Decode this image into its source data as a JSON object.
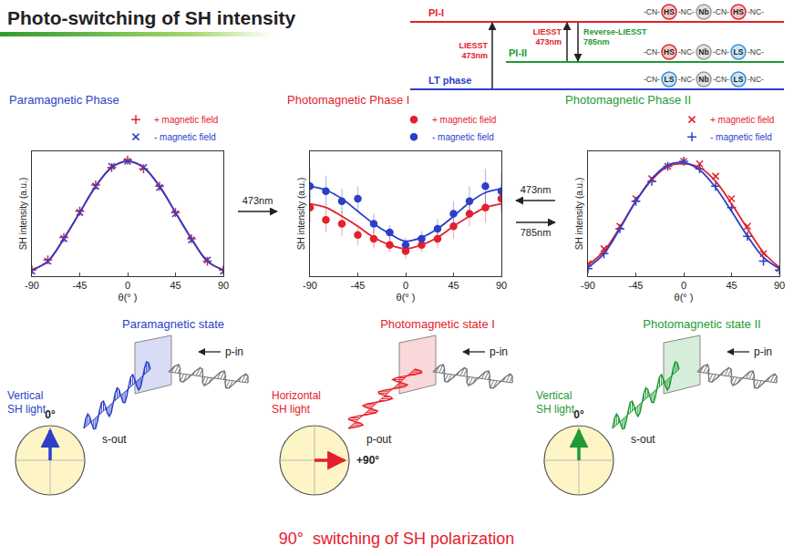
{
  "header": {
    "title": "Photo-switching of SH intensity"
  },
  "energy_diagram": {
    "levels": [
      {
        "label": "PI-I",
        "color": "#e5202b",
        "chain": [
          "-CN-",
          "HS",
          "-NC-",
          "Nb",
          "-CN-",
          "HS",
          "-NC-"
        ]
      },
      {
        "label": "PI-II",
        "color": "#1f9a35",
        "chain": [
          "-CN-",
          "HS",
          "-NC-",
          "Nb",
          "-CN-",
          "LS",
          "-NC-"
        ]
      },
      {
        "label": "LT phase",
        "color": "#2c3fc8",
        "chain": [
          "-CN-",
          "LS",
          "-NC-",
          "Nb",
          "-CN-",
          "LS",
          "-NC-"
        ]
      }
    ],
    "transitions": [
      {
        "from": "LT phase",
        "to": "PI-I",
        "text": [
          "LIESST",
          "473nm"
        ],
        "color": "#e5202b"
      },
      {
        "from": "PI-II",
        "to": "PI-I",
        "text": [
          "LIESST",
          "473nm"
        ],
        "color": "#e5202b"
      },
      {
        "from": "PI-I",
        "to": "PI-II",
        "text": [
          "Reverse-LIESST",
          "785nm"
        ],
        "color": "#1f9a35"
      }
    ]
  },
  "chart_data": [
    {
      "type": "scatter",
      "title": "Paramagnetic Phase",
      "color": "#2c3fc8",
      "x_label": "θ(° )",
      "y_label": "SH intensity (a.u.)",
      "x": [
        -90,
        -75,
        -60,
        -45,
        -30,
        -15,
        0,
        15,
        30,
        45,
        60,
        75,
        90
      ],
      "xlim": [
        -90,
        90
      ],
      "xticks": [
        -90,
        -45,
        0,
        45,
        90
      ],
      "ylim": [
        0,
        1
      ],
      "tick_labels": "x",
      "grid": false,
      "legend": "top right",
      "series": [
        {
          "name": "+ magnetic field",
          "color": "#e5202b",
          "marker": "cross",
          "values": [
            0.05,
            0.13,
            0.31,
            0.52,
            0.73,
            0.87,
            0.93,
            0.86,
            0.72,
            0.51,
            0.3,
            0.12,
            0.05
          ]
        },
        {
          "name": "- magnetic field",
          "color": "#2c3fc8",
          "marker": "x",
          "values": [
            0.04,
            0.12,
            0.3,
            0.51,
            0.72,
            0.88,
            0.92,
            0.87,
            0.71,
            0.5,
            0.29,
            0.13,
            0.04
          ]
        },
        {
          "type": "line",
          "color": "#e5202b",
          "line_style": "solid",
          "values": [
            0.05,
            0.12,
            0.3,
            0.51,
            0.72,
            0.87,
            0.92,
            0.87,
            0.72,
            0.51,
            0.3,
            0.12,
            0.05
          ]
        },
        {
          "type": "line",
          "color": "#2c3fc8",
          "line_style": "solid",
          "values": [
            0.05,
            0.12,
            0.3,
            0.51,
            0.72,
            0.87,
            0.92,
            0.87,
            0.72,
            0.51,
            0.3,
            0.12,
            0.05
          ]
        }
      ]
    },
    {
      "type": "scatter",
      "title": "Photomagnetic Phase I",
      "color": "#e5202b",
      "x_label": "θ(° )",
      "y_label": "SH intensity (a.u.)",
      "x": [
        -90,
        -75,
        -60,
        -45,
        -30,
        -15,
        0,
        15,
        30,
        45,
        60,
        75,
        90
      ],
      "xlim": [
        -90,
        90
      ],
      "xticks": [
        -90,
        -45,
        0,
        45,
        90
      ],
      "ylim": [
        0,
        1
      ],
      "tick_labels": "x",
      "grid": false,
      "legend": "top right",
      "series": [
        {
          "name": "+ magnetic field",
          "color": "#e5202b",
          "marker": "circle",
          "values": [
            0.55,
            0.45,
            0.42,
            0.33,
            0.3,
            0.25,
            0.2,
            0.25,
            0.3,
            0.4,
            0.5,
            0.55,
            0.62
          ],
          "errors": [
            0.12,
            0.1,
            0.1,
            0.08,
            0.08,
            0.06,
            0.06,
            0.06,
            0.08,
            0.1,
            0.1,
            0.12,
            0.12
          ]
        },
        {
          "name": "- magnetic field",
          "color": "#2c3fc8",
          "marker": "circle",
          "values": [
            0.72,
            0.68,
            0.6,
            0.62,
            0.42,
            0.35,
            0.25,
            0.3,
            0.38,
            0.5,
            0.6,
            0.72,
            0.68
          ],
          "errors": [
            0.14,
            0.12,
            0.1,
            0.1,
            0.08,
            0.06,
            0.06,
            0.06,
            0.08,
            0.1,
            0.12,
            0.14,
            0.14
          ]
        },
        {
          "type": "line",
          "color": "#e5202b",
          "line_style": "solid",
          "values": [
            0.58,
            0.55,
            0.48,
            0.4,
            0.31,
            0.25,
            0.22,
            0.25,
            0.31,
            0.4,
            0.48,
            0.55,
            0.58
          ]
        },
        {
          "type": "line",
          "color": "#2c3fc8",
          "line_style": "solid",
          "values": [
            0.72,
            0.69,
            0.62,
            0.52,
            0.42,
            0.34,
            0.28,
            0.31,
            0.38,
            0.48,
            0.59,
            0.67,
            0.7
          ]
        }
      ]
    },
    {
      "type": "scatter",
      "title": "Photomagnetic Phase II",
      "color": "#1f9a35",
      "x_label": "θ(° )",
      "y_label": "SH intensity (a.u.)",
      "x": [
        -90,
        -75,
        -60,
        -45,
        -30,
        -15,
        0,
        15,
        30,
        45,
        60,
        75,
        90
      ],
      "xlim": [
        -90,
        90
      ],
      "xticks": [
        -90,
        -45,
        0,
        45,
        90
      ],
      "ylim": [
        0,
        1
      ],
      "tick_labels": "x",
      "grid": false,
      "legend": "top right",
      "series": [
        {
          "name": "+ magnetic field",
          "color": "#e5202b",
          "marker": "x",
          "values": [
            0.1,
            0.22,
            0.4,
            0.62,
            0.78,
            0.88,
            0.92,
            0.9,
            0.8,
            0.62,
            0.4,
            0.18,
            0.06
          ]
        },
        {
          "name": "- magnetic field",
          "color": "#2c3fc8",
          "marker": "cross",
          "values": [
            0.06,
            0.18,
            0.38,
            0.6,
            0.76,
            0.88,
            0.92,
            0.86,
            0.72,
            0.55,
            0.32,
            0.12,
            0.05
          ]
        },
        {
          "type": "line",
          "color": "#e5202b",
          "line_style": "solid",
          "values": [
            0.09,
            0.2,
            0.39,
            0.6,
            0.77,
            0.88,
            0.9,
            0.87,
            0.76,
            0.58,
            0.38,
            0.19,
            0.07
          ]
        },
        {
          "type": "line",
          "color": "#2c3fc8",
          "line_style": "solid",
          "values": [
            0.07,
            0.18,
            0.38,
            0.6,
            0.78,
            0.89,
            0.91,
            0.85,
            0.71,
            0.52,
            0.32,
            0.15,
            0.06
          ]
        }
      ]
    }
  ],
  "phase_arrows": [
    {
      "from": 0,
      "to": 1,
      "label": "473nm"
    },
    {
      "from": 2,
      "to": 1,
      "label": "473nm"
    },
    {
      "from": 1,
      "to": 2,
      "label": "785nm"
    }
  ],
  "states": [
    {
      "title": "Paramagnetic state",
      "color": "#2c3fc8",
      "light": "Vertical SH light",
      "polarization": "vertical",
      "angle": {
        "value": 0,
        "label": "0°"
      },
      "in": "p-in",
      "out": "s-out"
    },
    {
      "title": "Photomagnetic state I",
      "color": "#e5202b",
      "light": "Horizontal SH light",
      "polarization": "horizontal",
      "angle": {
        "value": 90,
        "label": "+90°"
      },
      "in": "p-in",
      "out": "p-out"
    },
    {
      "title": "Photomagnetic state II",
      "color": "#1f9a35",
      "light": "Vertical SH light",
      "polarization": "vertical",
      "angle": {
        "value": 0,
        "label": "0°"
      },
      "in": "p-in",
      "out": "s-out"
    }
  ],
  "footer": "90°  switching of SH polarization"
}
